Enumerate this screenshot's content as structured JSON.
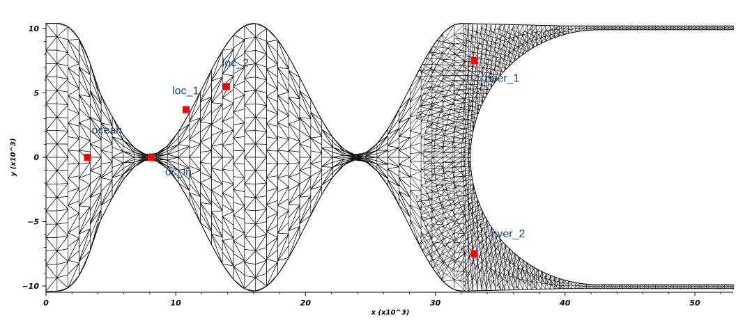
{
  "chart_data": {
    "type": "scatter",
    "title": "",
    "xlabel": "x (x10^3)",
    "ylabel": "y (x10^3)",
    "xlim": [
      0,
      53
    ],
    "ylim": [
      -10.5,
      10.5
    ],
    "x_ticks": [
      "0",
      "10",
      "20",
      "30",
      "40",
      "50"
    ],
    "y_ticks": [
      "10",
      "5",
      "0",
      "−5",
      "−10"
    ],
    "grid": false,
    "points": [
      {
        "label": "ocean",
        "x": 3.2,
        "y": 0.0
      },
      {
        "label": "oc_in",
        "x": 8.1,
        "y": 0.0
      },
      {
        "label": "loc_1",
        "x": 10.8,
        "y": 3.7
      },
      {
        "label": "loc_2",
        "x": 13.9,
        "y": 5.5
      },
      {
        "label": "river_1",
        "x": 33.0,
        "y": 7.5
      },
      {
        "label": "river_2",
        "x": 33.0,
        "y": -7.5
      }
    ],
    "marker_color": "#ff0000",
    "label_color": "#0a4a7f"
  }
}
